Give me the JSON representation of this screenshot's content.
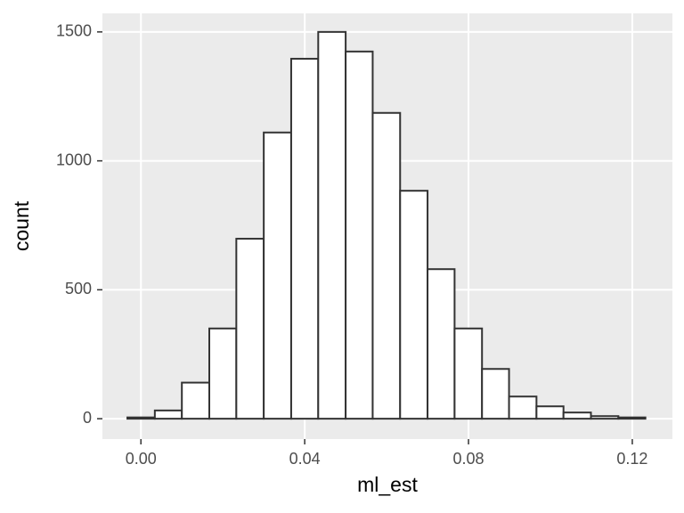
{
  "chart_data": {
    "type": "histogram",
    "x_label": "ml_est",
    "y_label": "count",
    "bins": [
      -0.0033,
      0.0034,
      0.01,
      0.0167,
      0.0233,
      0.03,
      0.0367,
      0.0433,
      0.05,
      0.0566,
      0.0633,
      0.07,
      0.0766,
      0.0833,
      0.0899,
      0.0966,
      0.1032,
      0.1099,
      0.1166,
      0.1232
    ],
    "values": [
      5,
      32,
      140,
      350,
      698,
      1110,
      1396,
      1500,
      1424,
      1186,
      884,
      580,
      350,
      193,
      86,
      48,
      24,
      10,
      5
    ],
    "color": "#ffffff",
    "edge_color": "#333333",
    "xlim": [
      -0.0094,
      0.1298
    ],
    "xticks": [
      {
        "value": 0,
        "label": "0.00"
      },
      {
        "value": 0.04,
        "label": "0.04"
      },
      {
        "value": 0.08,
        "label": "0.08"
      },
      {
        "value": 0.12,
        "label": "0.12"
      }
    ],
    "ylim": [
      -79,
      1572
    ],
    "yticks": [
      0,
      500,
      1000,
      1500
    ],
    "grid": true
  }
}
